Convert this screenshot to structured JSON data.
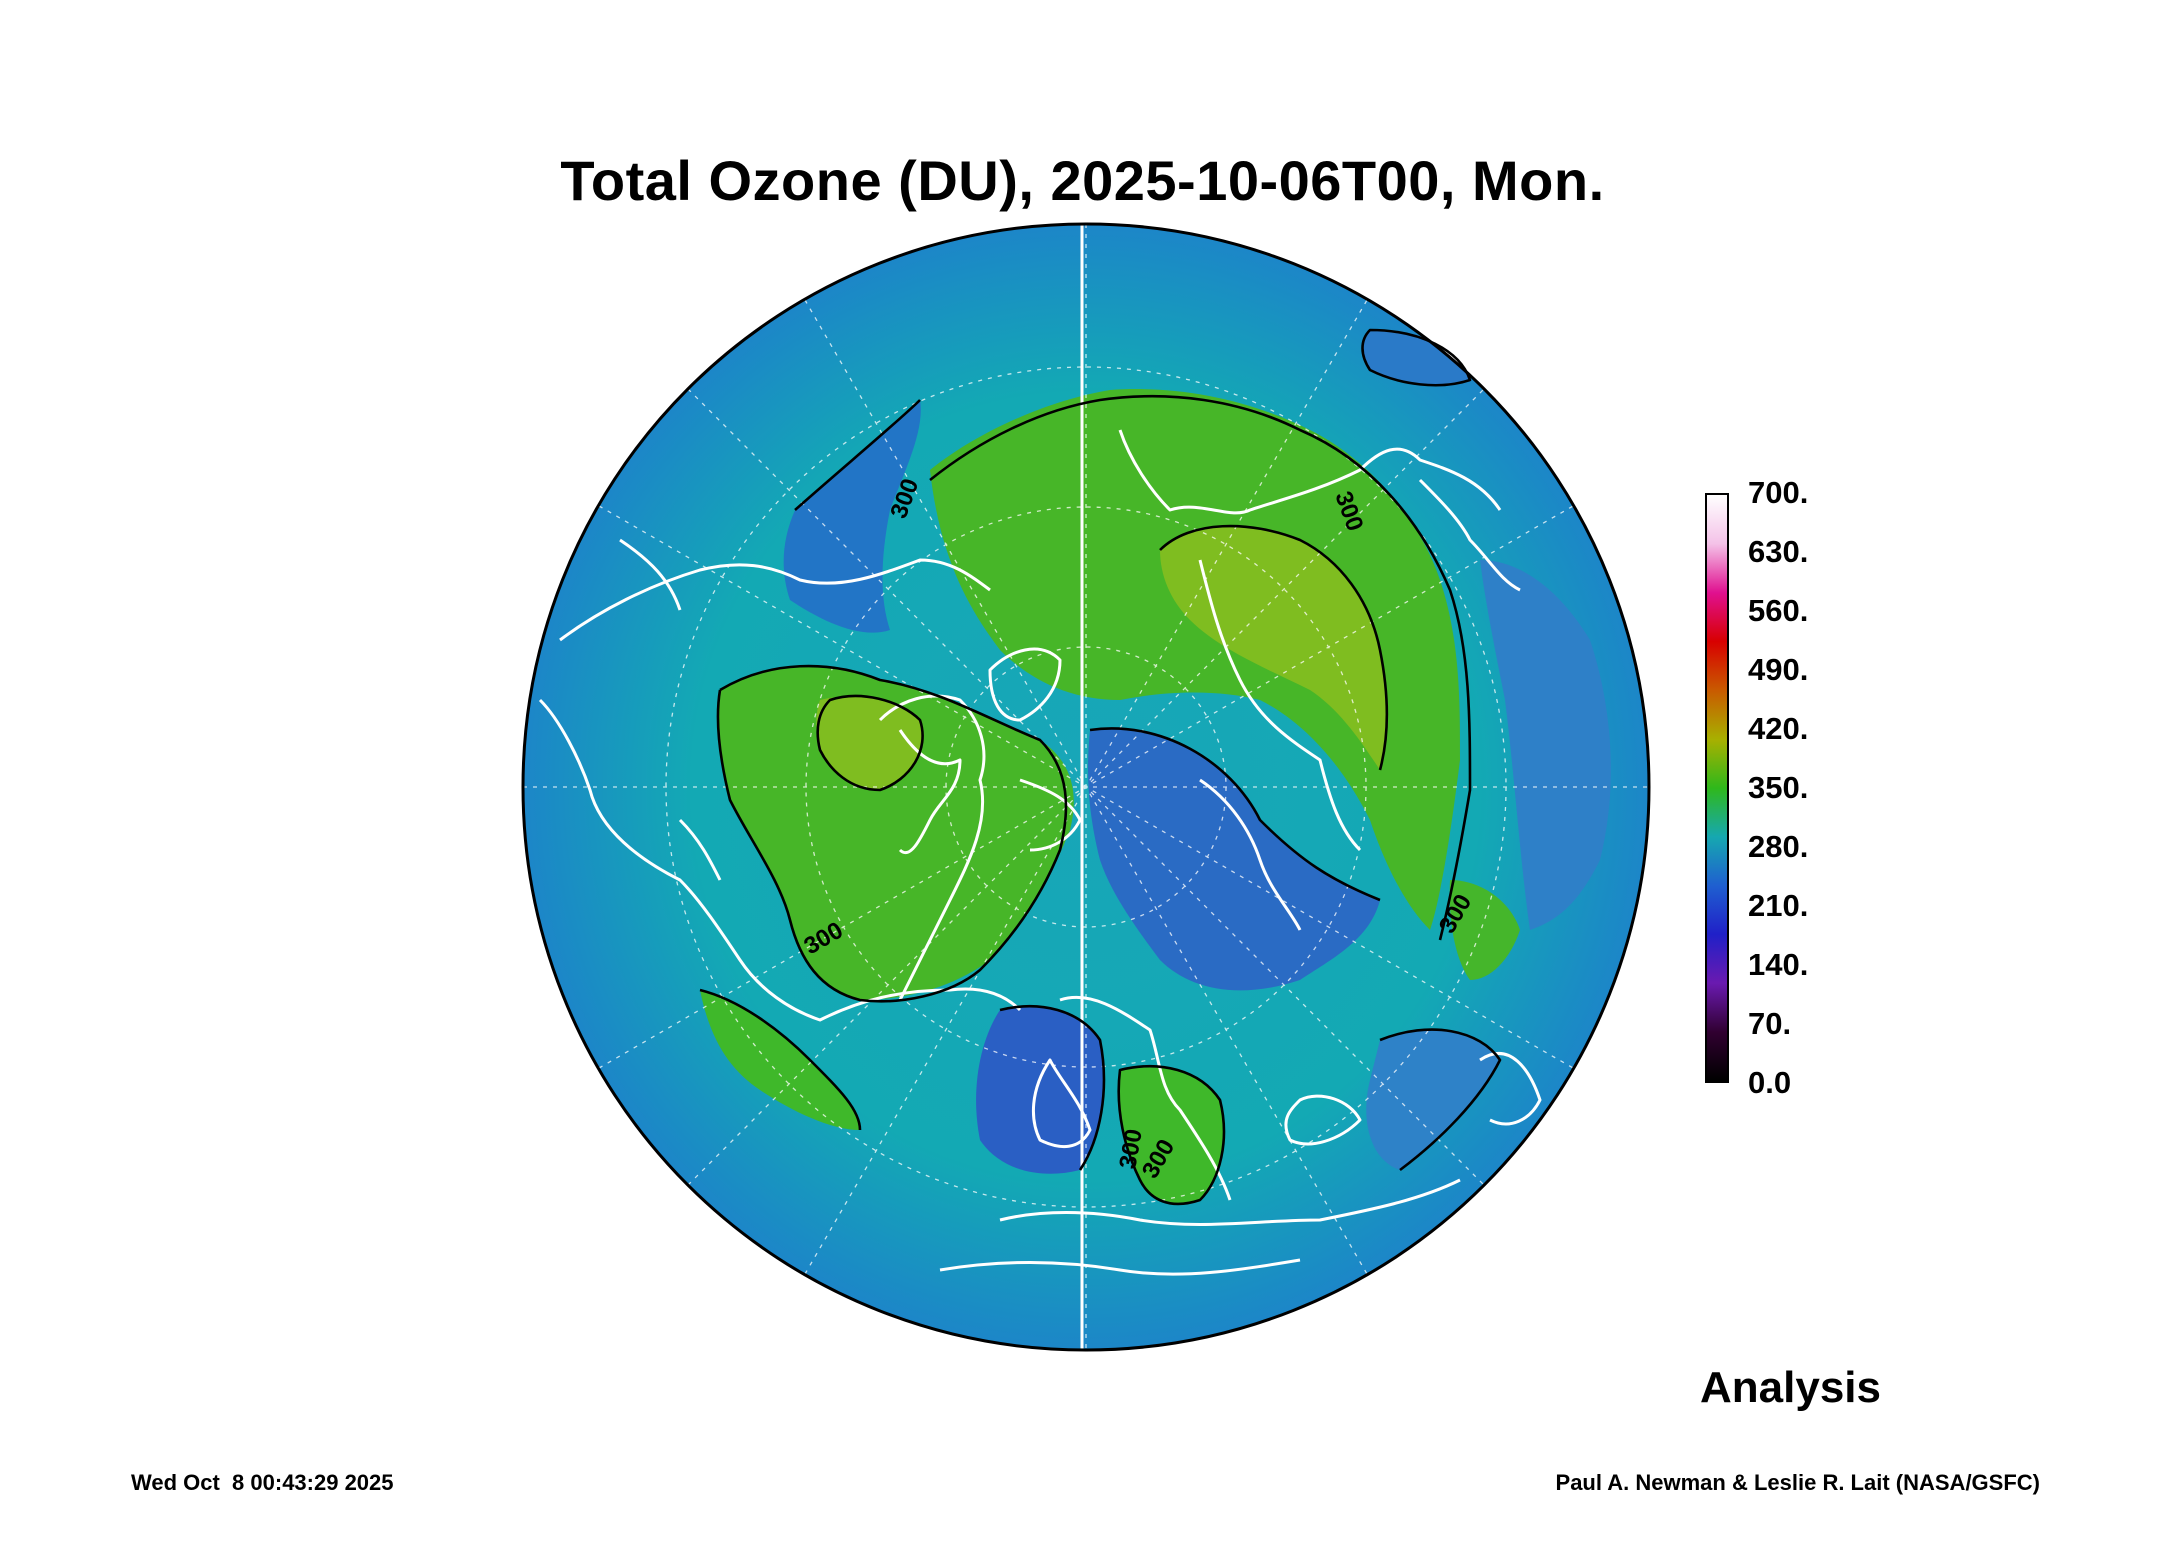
{
  "title": "Total Ozone (DU), 2025-10-06T00, Mon.",
  "colorbar": {
    "labels": [
      "700.",
      "630.",
      "560.",
      "490.",
      "420.",
      "350.",
      "280.",
      "210.",
      "140.",
      "70.",
      "0.0"
    ],
    "stops": [
      "#ffffff",
      "#f4c2e8",
      "#e0108f",
      "#d80000",
      "#c95a00",
      "#a8b000",
      "#2fb81b",
      "#16a8b0",
      "#1f5fd0",
      "#2020c8",
      "#6a1ab0",
      "#300030",
      "#000000"
    ]
  },
  "contour_labels": [
    "300",
    "300",
    "300",
    "300",
    "300",
    "300"
  ],
  "map_colors": {
    "low": "#1e74c8",
    "mid": "#13a9b4",
    "high": "#3fb82a",
    "peak": "#8fc21b",
    "land_outline": "#ffffff",
    "contour": "#000000"
  },
  "product_label": "Analysis",
  "footer": {
    "timestamp": "Wed Oct  8 00:43:29 2025",
    "credit": "Paul A. Newman & Leslie R. Lait (NASA/GSFC)"
  }
}
